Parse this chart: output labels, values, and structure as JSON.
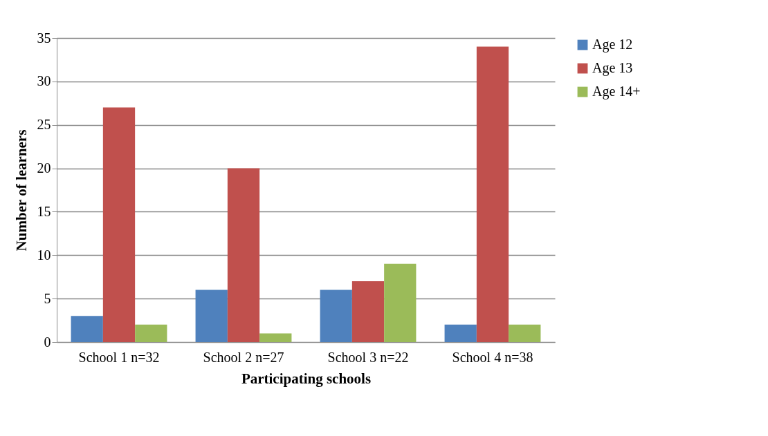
{
  "chart_data": {
    "type": "bar",
    "xlabel": "Participating schools",
    "ylabel": "Number of learners",
    "categories": [
      "School 1 n=32",
      "School 2 n=27",
      "School 3 n=22",
      "School 4 n=38"
    ],
    "series": [
      {
        "name": "Age 12",
        "color": "#4f81bd",
        "values": [
          3,
          6,
          6,
          2
        ]
      },
      {
        "name": "Age 13",
        "color": "#c0504d",
        "values": [
          27,
          20,
          7,
          34
        ]
      },
      {
        "name": "Age 14+",
        "color": "#9bbb59",
        "values": [
          2,
          1,
          9,
          2
        ]
      }
    ],
    "ylim": [
      0,
      35
    ],
    "yticks": [
      0,
      5,
      10,
      15,
      20,
      25,
      30,
      35
    ],
    "grid": "y",
    "legend": "right"
  }
}
